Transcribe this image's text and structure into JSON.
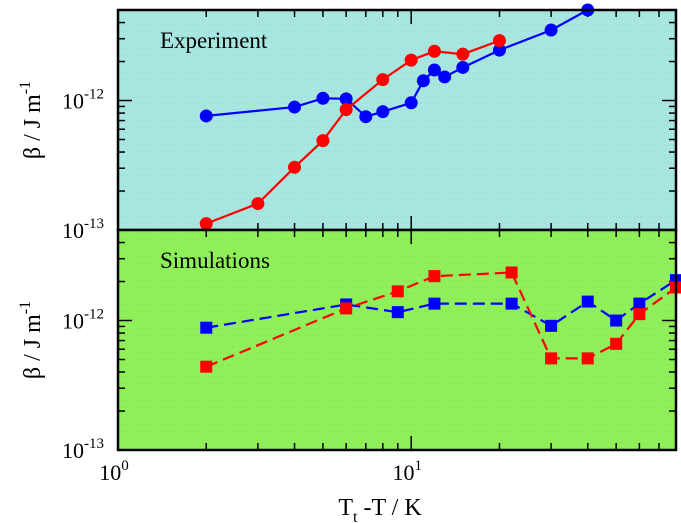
{
  "chart_data": [
    {
      "type": "line",
      "title": "Experiment",
      "panel_color": "#a8e6e0",
      "x_scale": "log",
      "y_scale": "log",
      "xlim": [
        1,
        80
      ],
      "ylim": [
        1e-13,
        5e-12
      ],
      "ylabel": "β / J m",
      "ylabel_exp": "-1",
      "y_ticks": [
        {
          "value": 1e-13,
          "base": "10",
          "exp": "-13"
        },
        {
          "value": 1e-12,
          "base": "10",
          "exp": "-12"
        }
      ],
      "series": [
        {
          "color": "#0000ff",
          "marker": "circle",
          "line": "solid",
          "x": [
            2,
            4,
            5,
            6,
            7,
            8,
            10,
            11,
            12,
            13,
            15,
            20,
            30,
            40
          ],
          "y": [
            7.6e-13,
            8.9e-13,
            1.04e-12,
            1.03e-12,
            7.5e-13,
            8.2e-13,
            9.6e-13,
            1.42e-12,
            1.72e-12,
            1.52e-12,
            1.8e-12,
            2.45e-12,
            3.5e-12,
            5e-12
          ]
        },
        {
          "color": "#ff0000",
          "marker": "circle",
          "line": "solid",
          "x": [
            2,
            3,
            4,
            5,
            6,
            8,
            10,
            12,
            15,
            20
          ],
          "y": [
            1.12e-13,
            1.6e-13,
            3.05e-13,
            4.9e-13,
            8.5e-13,
            1.45e-12,
            2.05e-12,
            2.4e-12,
            2.28e-12,
            2.9e-12
          ]
        }
      ]
    },
    {
      "type": "line",
      "title": "Simulations",
      "panel_color": "#8ff05a",
      "x_scale": "log",
      "y_scale": "log",
      "xlim": [
        1,
        80
      ],
      "ylim": [
        1e-13,
        5e-12
      ],
      "xlabel": "T",
      "xlabel_sub": "t",
      "xlabel_rest": " -T / K",
      "ylabel": "β / J m",
      "ylabel_exp": "-1",
      "x_ticks": [
        {
          "value": 1,
          "base": "10",
          "exp": "0"
        },
        {
          "value": 10,
          "base": "10",
          "exp": "1"
        }
      ],
      "y_ticks": [
        {
          "value": 1e-13,
          "base": "10",
          "exp": "-13"
        },
        {
          "value": 1e-12,
          "base": "10",
          "exp": "-12"
        }
      ],
      "series": [
        {
          "color": "#0000ff",
          "marker": "square",
          "line": "dashed",
          "x": [
            2,
            6,
            9,
            12,
            22,
            30,
            40,
            50,
            60,
            80
          ],
          "y": [
            8.8e-13,
            1.33e-12,
            1.16e-12,
            1.35e-12,
            1.35e-12,
            9.1e-13,
            1.4e-12,
            1e-12,
            1.35e-12,
            2.05e-12
          ]
        },
        {
          "color": "#ff0000",
          "marker": "square",
          "line": "dashed",
          "x": [
            2,
            6,
            9,
            12,
            22,
            30,
            40,
            50,
            60,
            80
          ],
          "y": [
            4.4e-13,
            1.24e-12,
            1.68e-12,
            2.2e-12,
            2.35e-12,
            5.1e-13,
            5.1e-13,
            6.6e-13,
            1.12e-12,
            1.8e-12
          ]
        }
      ]
    }
  ]
}
